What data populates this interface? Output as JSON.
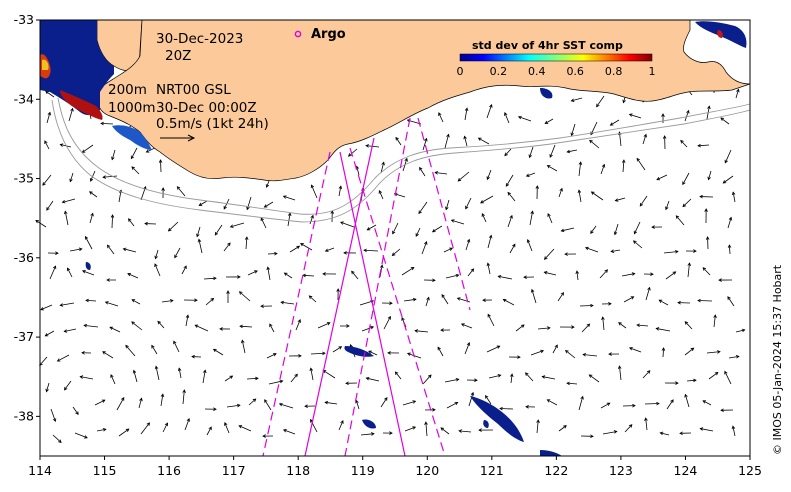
{
  "map": {
    "date_line": "30-Dec-2023",
    "time_line": "20Z",
    "depth_200": "200m",
    "depth_1000": "1000m",
    "product": "NRT00 GSL",
    "product_time": "30-Dec 00:00Z",
    "scale_label": "0.5m/s (1kt 24h)",
    "argo_label": "Argo",
    "credit": "© IMOS 05-Jan-2024 15:37 Hobart",
    "lon_range": [
      114,
      125
    ],
    "lat_range": [
      -38.5,
      -33
    ],
    "lon_ticks": [
      "114",
      "115",
      "116",
      "117",
      "118",
      "119",
      "120",
      "121",
      "122",
      "123",
      "124",
      "125"
    ],
    "lat_ticks": [
      "-33",
      "-34",
      "-35",
      "-36",
      "-37",
      "-38"
    ],
    "colors": {
      "land": "#fbc99a",
      "ocean": "#ffffff",
      "track": "#e000e0",
      "contour": "#9a9a9a",
      "argo": "#e000e0"
    }
  },
  "colorbar": {
    "title": "std dev of 4hr SST comp",
    "ticks": [
      "0",
      "0.2",
      "0.4",
      "0.6",
      "0.8",
      "1"
    ],
    "range": [
      0,
      1
    ],
    "colormap": "jet"
  }
}
